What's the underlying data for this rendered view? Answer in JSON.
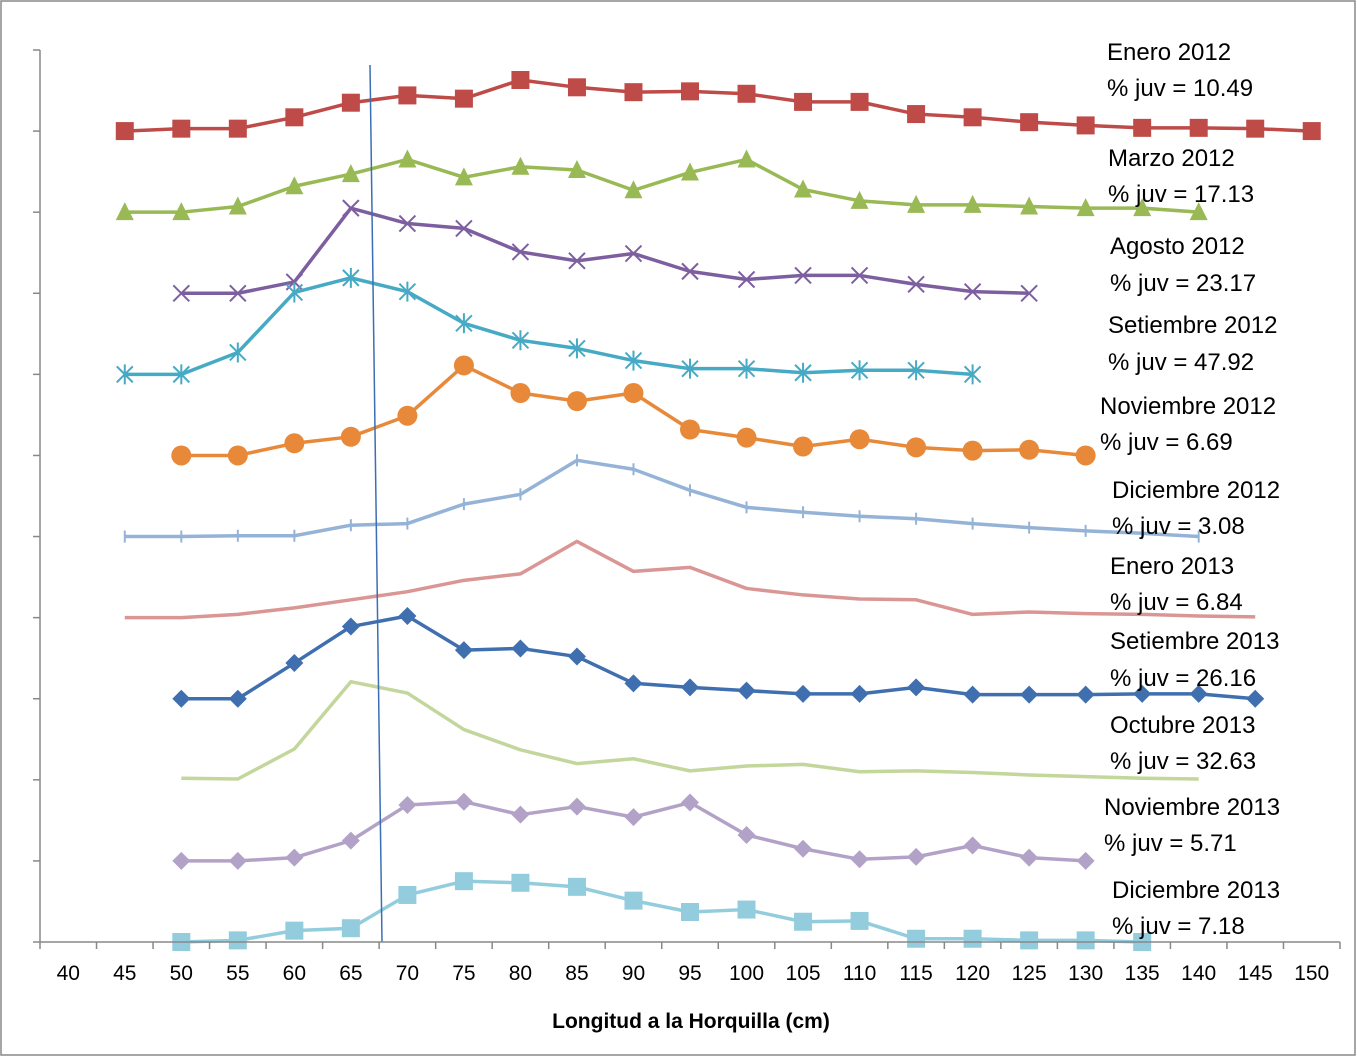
{
  "chart_data": {
    "type": "line",
    "x_label": "Longitud a la Horquilla (cm)",
    "categories": [
      "40",
      "45",
      "50",
      "55",
      "60",
      "65",
      "70",
      "75",
      "80",
      "85",
      "90",
      "95",
      "100",
      "105",
      "110",
      "115",
      "120",
      "125",
      "130",
      "135",
      "140",
      "145",
      "150"
    ],
    "ylim": [
      0,
      11
    ],
    "yticks": [
      0,
      1,
      2,
      3,
      4,
      5,
      6,
      7,
      8,
      9,
      10,
      11
    ],
    "series": [
      {
        "name": "Enero 2012",
        "annotation": "% juv = 10.49",
        "color": "#be4b48",
        "marker": "square",
        "values": [
          null,
          10.0,
          10.03,
          10.03,
          10.17,
          10.35,
          10.44,
          10.4,
          10.63,
          10.54,
          10.48,
          10.49,
          10.46,
          10.36,
          10.36,
          10.21,
          10.17,
          10.11,
          10.07,
          10.04,
          10.04,
          10.03,
          10.0
        ]
      },
      {
        "name": "Marzo 2012",
        "annotation": "% juv = 17.13",
        "color": "#98b954",
        "marker": "triangle",
        "values": [
          null,
          9.0,
          9.0,
          9.07,
          9.32,
          9.47,
          9.65,
          9.43,
          9.56,
          9.52,
          9.27,
          9.49,
          9.65,
          9.28,
          9.14,
          9.09,
          9.09,
          9.07,
          9.05,
          9.05,
          9.0,
          null,
          null
        ]
      },
      {
        "name": "Agosto 2012",
        "annotation": "% juv = 23.17",
        "color": "#7d5fa0",
        "marker": "x",
        "values": [
          null,
          null,
          8.0,
          8.0,
          8.14,
          9.05,
          8.86,
          8.8,
          8.51,
          8.4,
          8.49,
          8.27,
          8.17,
          8.22,
          8.22,
          8.11,
          8.02,
          8.0,
          null,
          null,
          null,
          null,
          null
        ]
      },
      {
        "name": "Setiembre 2012",
        "annotation": "% juv = 47.92",
        "color": "#46aac5",
        "marker": "star",
        "values": [
          null,
          7.0,
          7.0,
          7.27,
          8.01,
          8.19,
          8.02,
          7.63,
          7.42,
          7.32,
          7.17,
          7.07,
          7.07,
          7.02,
          7.05,
          7.05,
          7.0,
          null,
          null,
          null,
          null,
          null,
          null
        ]
      },
      {
        "name": "Noviembre 2012",
        "annotation": "% juv = 6.69",
        "color": "#e8893a",
        "marker": "circle",
        "values": [
          null,
          null,
          6.0,
          6.0,
          6.15,
          6.23,
          6.49,
          7.11,
          6.77,
          6.67,
          6.77,
          6.32,
          6.22,
          6.11,
          6.2,
          6.1,
          6.06,
          6.07,
          6.0,
          null,
          null,
          null,
          null
        ]
      },
      {
        "name": "Diciembre 2012",
        "annotation": "% juv = 3.08",
        "color": "#95b3d7",
        "marker": "dash",
        "values": [
          null,
          5.0,
          5.0,
          5.01,
          5.01,
          5.14,
          5.16,
          5.4,
          5.52,
          5.94,
          5.83,
          5.57,
          5.36,
          5.3,
          5.25,
          5.22,
          5.16,
          5.11,
          5.07,
          5.04,
          5.0,
          null,
          null
        ]
      },
      {
        "name": "Enero 2013",
        "annotation": "% juv = 6.84",
        "color": "#d99694",
        "marker": "none",
        "values": [
          null,
          4.0,
          4.0,
          4.04,
          4.12,
          4.22,
          4.32,
          4.46,
          4.54,
          4.94,
          4.57,
          4.62,
          4.36,
          4.28,
          4.23,
          4.22,
          4.04,
          4.07,
          4.05,
          4.04,
          4.02,
          4.01,
          null
        ]
      },
      {
        "name": "Setiembre 2013",
        "annotation": "% juv = 26.16",
        "color": "#3f6faf",
        "marker": "diamond",
        "values": [
          null,
          null,
          3.0,
          3.0,
          3.44,
          3.89,
          4.02,
          3.6,
          3.62,
          3.52,
          3.19,
          3.14,
          3.1,
          3.06,
          3.06,
          3.14,
          3.05,
          3.05,
          3.05,
          3.06,
          3.06,
          3.0,
          null
        ]
      },
      {
        "name": "Octubre 2013",
        "annotation": "% juv = 32.63",
        "color": "#c3d69b",
        "marker": "none",
        "values": [
          null,
          null,
          2.02,
          2.01,
          2.38,
          3.21,
          3.07,
          2.62,
          2.37,
          2.2,
          2.26,
          2.11,
          2.17,
          2.19,
          2.1,
          2.11,
          2.09,
          2.06,
          2.04,
          2.02,
          2.01,
          null,
          null
        ]
      },
      {
        "name": "Noviembre 2013",
        "annotation": "% juv = 5.71",
        "color": "#b3a2c7",
        "marker": "diamond",
        "values": [
          null,
          null,
          1.0,
          1.0,
          1.04,
          1.25,
          1.69,
          1.73,
          1.57,
          1.67,
          1.54,
          1.72,
          1.32,
          1.15,
          1.02,
          1.05,
          1.19,
          1.04,
          1.0,
          null,
          null,
          null,
          null
        ]
      },
      {
        "name": "Diciembre 2013",
        "annotation": "% juv = 7.18",
        "color": "#93cddd",
        "marker": "square",
        "values": [
          null,
          null,
          0.0,
          0.02,
          0.14,
          0.17,
          0.58,
          0.75,
          0.73,
          0.68,
          0.51,
          0.37,
          0.4,
          0.25,
          0.26,
          0.04,
          0.04,
          0.02,
          0.02,
          0.0,
          null,
          null,
          null
        ]
      }
    ]
  }
}
